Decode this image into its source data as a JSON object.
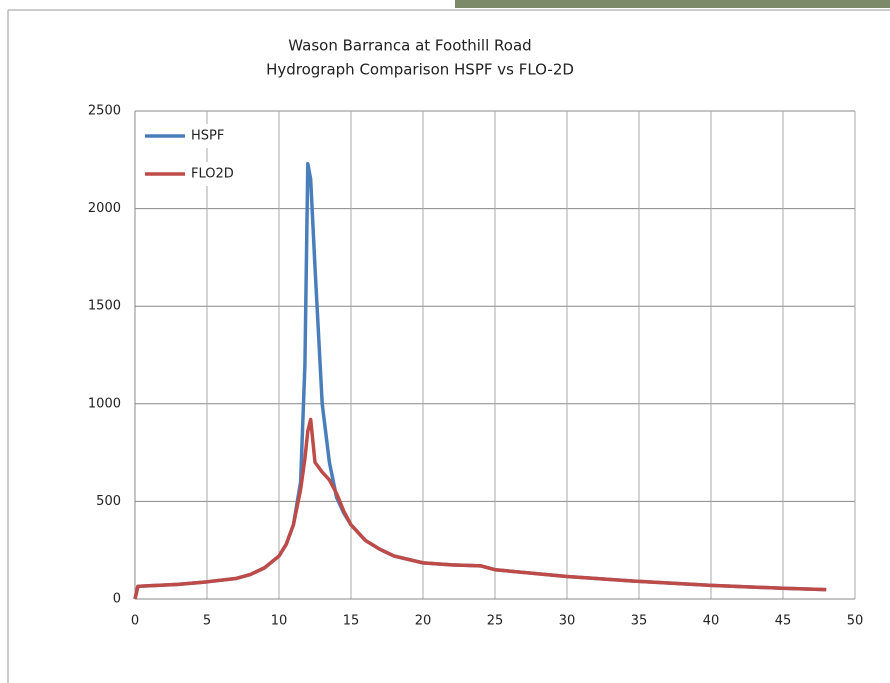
{
  "chart_data": {
    "type": "line",
    "title": "Wason Barranca at Foothill Road",
    "subtitle": "Hydrograph Comparison HSPF vs FLO-2D",
    "x": [
      0,
      0.2,
      1,
      3,
      5,
      7,
      8,
      9,
      10,
      10.5,
      11,
      11.5,
      11.8,
      12,
      12.2,
      12.5,
      13,
      13.5,
      14,
      14.5,
      15,
      16,
      17,
      18,
      20,
      22,
      24,
      25,
      30,
      35,
      40,
      45,
      48
    ],
    "series": [
      {
        "name": "HSPF",
        "color": "#4a7ebb",
        "values": [
          0,
          65,
          68,
          75,
          88,
          105,
          125,
          160,
          220,
          280,
          380,
          600,
          1200,
          2230,
          2150,
          1700,
          1000,
          700,
          520,
          440,
          380,
          300,
          255,
          220,
          185,
          175,
          170,
          150,
          115,
          90,
          70,
          55,
          48
        ]
      },
      {
        "name": "FLO2D",
        "color": "#be4b48",
        "values": [
          0,
          65,
          68,
          75,
          88,
          105,
          125,
          160,
          220,
          280,
          380,
          560,
          720,
          860,
          920,
          700,
          650,
          610,
          540,
          450,
          380,
          300,
          255,
          220,
          185,
          175,
          170,
          150,
          115,
          90,
          70,
          55,
          48
        ]
      }
    ],
    "xlim": [
      0,
      50
    ],
    "xticks": [
      0,
      5,
      10,
      15,
      20,
      25,
      30,
      35,
      40,
      45,
      50
    ],
    "ylim": [
      0,
      2500
    ],
    "yticks": [
      0,
      500,
      1000,
      1500,
      2000,
      2500
    ],
    "grid": true,
    "legend": "top-left"
  }
}
